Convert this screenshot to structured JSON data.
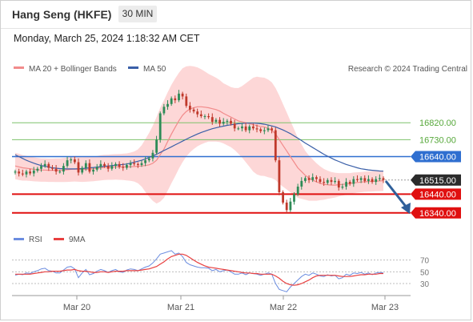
{
  "header": {
    "title": "Hang Seng (HKFE)",
    "timeframe": "30 MIN"
  },
  "datetime": "Monday, March 25, 2024 1:18:32 AM CET",
  "legend": {
    "ma20": "MA 20 + Bollinger Bands",
    "ma50": "MA 50",
    "credit": "Research © 2024 Trading Central",
    "rsi": "RSI",
    "ma9": "9MA"
  },
  "colors": {
    "up": "#2e8b57",
    "down": "#c0392b",
    "ma20": "#f28b8b",
    "ma50": "#3a5fa8",
    "band": "#fcc9c9",
    "green_level": "#7ec26b",
    "blue_level": "#2f6fd0",
    "red_level": "#e01010",
    "current": "#2b2b2b",
    "rsi": "#6b8de0",
    "ma9": "#e84040"
  },
  "chart_data": {
    "type": "candlestick",
    "title": "Hang Seng (HKFE)",
    "ylim": [
      16230,
      17050
    ],
    "x_labels": [
      "Mar 20",
      "Mar 21",
      "Mar 22",
      "Mar 23"
    ],
    "levels": [
      {
        "value": 16820,
        "label": "16820.00",
        "kind": "green"
      },
      {
        "value": 16730,
        "label": "16730.00",
        "kind": "green"
      },
      {
        "value": 16640,
        "label": "16640.00",
        "kind": "blue"
      },
      {
        "value": 16515,
        "label": "16515.00",
        "kind": "current"
      },
      {
        "value": 16440,
        "label": "16440.00",
        "kind": "red"
      },
      {
        "value": 16340,
        "label": "16340.00",
        "kind": "red"
      }
    ],
    "close": [
      16560,
      16550,
      16545,
      16560,
      16550,
      16565,
      16575,
      16590,
      16600,
      16580,
      16575,
      16560,
      16560,
      16590,
      16620,
      16625,
      16610,
      16555,
      16580,
      16605,
      16560,
      16570,
      16585,
      16600,
      16590,
      16575,
      16590,
      16600,
      16585,
      16580,
      16595,
      16605,
      16600,
      16595,
      16605,
      16620,
      16630,
      16660,
      16730,
      16870,
      16905,
      16920,
      16950,
      16940,
      16975,
      16960,
      16910,
      16890,
      16880,
      16865,
      16855,
      16855,
      16850,
      16825,
      16835,
      16815,
      16825,
      16830,
      16815,
      16790,
      16790,
      16800,
      16780,
      16800,
      16790,
      16785,
      16775,
      16780,
      16790,
      16780,
      16620,
      16450,
      16395,
      16355,
      16400,
      16440,
      16480,
      16510,
      16525,
      16515,
      16530,
      16520,
      16505,
      16500,
      16515,
      16505,
      16510,
      16475,
      16480,
      16505,
      16495,
      16520,
      16515,
      16525,
      16510,
      16520,
      16505,
      16520,
      16525,
      16515
    ],
    "ma20": [
      16590,
      16585,
      16580,
      16578,
      16575,
      16572,
      16570,
      16568,
      16568,
      16567,
      16567,
      16567,
      16567,
      16568,
      16570,
      16572,
      16573,
      16572,
      16571,
      16572,
      16573,
      16575,
      16577,
      16580,
      16582,
      16583,
      16584,
      16585,
      16585,
      16585,
      16585,
      16586,
      16587,
      16588,
      16590,
      16592,
      16596,
      16604,
      16620,
      16650,
      16680,
      16720,
      16760,
      16795,
      16830,
      16860,
      16880,
      16893,
      16900,
      16905,
      16905,
      16903,
      16900,
      16895,
      16890,
      16882,
      16870,
      16860,
      16850,
      16840,
      16830,
      16825,
      16820,
      16815,
      16810,
      16805,
      16800,
      16798,
      16790,
      16780,
      16760,
      16730,
      16700,
      16670,
      16640,
      16610,
      16580,
      16560,
      16540,
      16525,
      16515,
      16505,
      16498,
      16492,
      16490,
      16488,
      16488,
      16490,
      16492,
      16494,
      16496,
      16500,
      16502,
      16504,
      16506,
      16507,
      16508,
      16509,
      16510,
      16511
    ],
    "ma50": [
      16650,
      16640,
      16630,
      16620,
      16612,
      16605,
      16598,
      16592,
      16588,
      16584,
      16580,
      16578,
      16576,
      16575,
      16574,
      16574,
      16574,
      16575,
      16576,
      16578,
      16580,
      16582,
      16584,
      16586,
      16588,
      16590,
      16592,
      16594,
      16596,
      16598,
      16600,
      16605,
      16610,
      16615,
      16620,
      16627,
      16635,
      16643,
      16652,
      16662,
      16672,
      16682,
      16692,
      16702,
      16712,
      16722,
      16732,
      16742,
      16751,
      16760,
      16768,
      16775,
      16782,
      16788,
      16793,
      16798,
      16802,
      16806,
      16809,
      16812,
      16815,
      16816,
      16818,
      16818,
      16818,
      16817,
      16815,
      16812,
      16808,
      16803,
      16798,
      16790,
      16782,
      16772,
      16762,
      16750,
      16738,
      16725,
      16712,
      16700,
      16688,
      16676,
      16664,
      16652,
      16642,
      16632,
      16622,
      16614,
      16606,
      16598,
      16592,
      16586,
      16580,
      16575,
      16572,
      16569,
      16567,
      16565,
      16563,
      16562
    ],
    "bb_width": [
      70,
      70,
      68,
      66,
      65,
      64,
      63,
      62,
      62,
      62,
      62,
      63,
      63,
      64,
      65,
      66,
      66,
      66,
      66,
      66,
      66,
      66,
      66,
      67,
      67,
      67,
      68,
      68,
      69,
      70,
      72,
      75,
      80,
      90,
      110,
      140,
      170,
      200,
      230,
      250,
      260,
      262,
      262,
      260,
      255,
      250,
      240,
      230,
      220,
      210,
      200,
      190,
      180,
      175,
      170,
      165,
      160,
      160,
      160,
      165,
      175,
      190,
      210,
      230,
      250,
      260,
      262,
      262,
      260,
      255,
      245,
      235,
      220,
      205,
      190,
      175,
      160,
      145,
      130,
      120,
      110,
      100,
      90,
      82,
      75,
      70,
      66,
      62,
      60,
      58,
      56,
      55,
      54,
      54,
      54,
      54,
      54,
      54,
      54,
      54
    ],
    "rsi": {
      "levels": [
        70,
        50,
        30
      ],
      "ylim": [
        20,
        90
      ],
      "values": [
        44,
        46,
        45,
        48,
        47,
        50,
        52,
        55,
        56,
        52,
        51,
        48,
        48,
        53,
        58,
        59,
        55,
        40,
        48,
        54,
        45,
        47,
        51,
        54,
        52,
        49,
        52,
        54,
        50,
        49,
        53,
        55,
        54,
        52,
        55,
        58,
        60,
        65,
        72,
        80,
        82,
        84,
        86,
        80,
        82,
        76,
        66,
        62,
        60,
        58,
        57,
        57,
        56,
        52,
        54,
        50,
        52,
        53,
        50,
        46,
        46,
        48,
        45,
        48,
        47,
        46,
        44,
        46,
        48,
        46,
        30,
        20,
        18,
        16,
        24,
        30,
        36,
        42,
        46,
        44,
        48,
        46,
        43,
        42,
        45,
        43,
        44,
        38,
        40,
        46,
        44,
        48,
        47,
        49,
        46,
        48,
        45,
        48,
        49,
        48
      ],
      "ma9": [
        46,
        46,
        46,
        46,
        46,
        47,
        48,
        49,
        50,
        50,
        51,
        51,
        51,
        52,
        53,
        53,
        54,
        52,
        51,
        51,
        50,
        49,
        49,
        50,
        50,
        49,
        50,
        51,
        51,
        51,
        52,
        52,
        52,
        52,
        53,
        54,
        55,
        57,
        59,
        63,
        67,
        72,
        76,
        78,
        80,
        80,
        78,
        74,
        70,
        66,
        63,
        60,
        58,
        57,
        56,
        55,
        54,
        53,
        52,
        51,
        50,
        49,
        48,
        48,
        47,
        47,
        46,
        46,
        46,
        46,
        43,
        39,
        34,
        30,
        28,
        27,
        28,
        30,
        33,
        36,
        40,
        43,
        44,
        44,
        44,
        44,
        44,
        43,
        42,
        42,
        42,
        43,
        44,
        45,
        45,
        46,
        46,
        46,
        47,
        47
      ]
    }
  }
}
